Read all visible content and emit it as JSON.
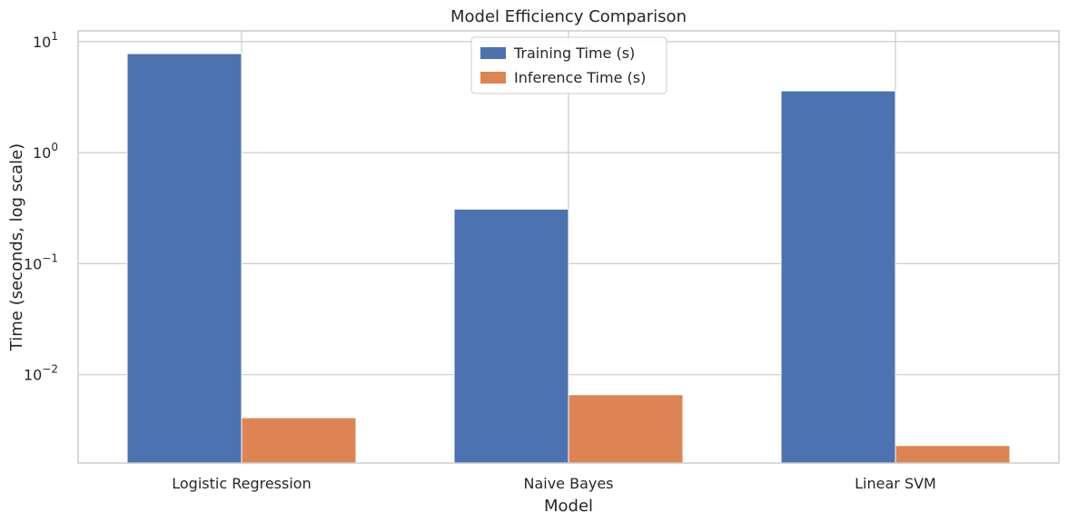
{
  "chart_data": {
    "type": "bar",
    "title": "Model Efficiency Comparison",
    "xlabel": "Model",
    "ylabel": "Time (seconds, log scale)",
    "yscale": "log",
    "ylim": [
      0.0016,
      12.5
    ],
    "yticks": [
      {
        "value": 0.01,
        "base": "10",
        "exp": "−2"
      },
      {
        "value": 0.1,
        "base": "10",
        "exp": "−1"
      },
      {
        "value": 1,
        "base": "10",
        "exp": "0"
      },
      {
        "value": 10,
        "base": "10",
        "exp": "1"
      }
    ],
    "categories": [
      "Logistic Regression",
      "Naive Bayes",
      "Linear SVM"
    ],
    "series": [
      {
        "name": "Training Time (s)",
        "color": "#4c72b0",
        "values": [
          7.8,
          0.31,
          3.6
        ]
      },
      {
        "name": "Inference Time (s)",
        "color": "#dd8452",
        "values": [
          0.0041,
          0.0066,
          0.0023
        ]
      }
    ],
    "grid": true,
    "legend_position": "top-center"
  }
}
